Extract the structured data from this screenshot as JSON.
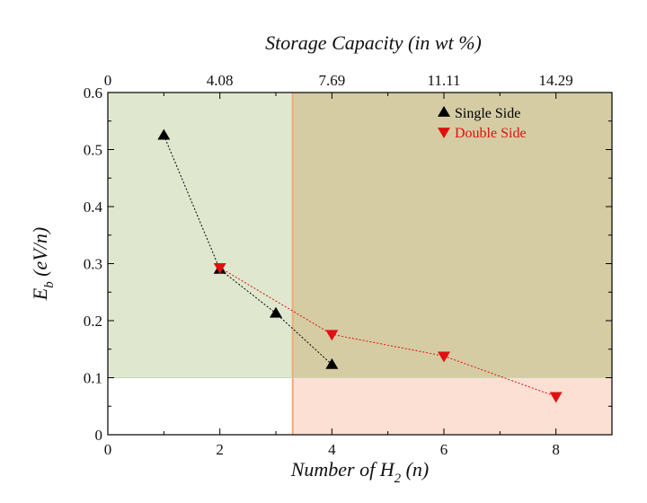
{
  "chart_data": {
    "type": "scatter",
    "x_axis": {
      "label_main": "Number of H",
      "label_sub": "2",
      "label_tail": " (n)",
      "range": [
        0,
        9
      ],
      "ticks": [
        0,
        2,
        4,
        6,
        8
      ],
      "tick_labels": [
        "0",
        "2",
        "4",
        "6",
        "8"
      ]
    },
    "top_axis": {
      "label": "Storage Capacity (in wt %)",
      "ticks": [
        0,
        2,
        4,
        6,
        8
      ],
      "tick_labels": [
        "0",
        "4.08",
        "7.69",
        "11.11",
        "14.29"
      ]
    },
    "y_axis": {
      "label_main": "E",
      "label_sub": "b",
      "label_tail": " (eV/n)",
      "range": [
        0,
        0.6
      ],
      "ticks": [
        0,
        0.1,
        0.2,
        0.3,
        0.4,
        0.5,
        0.6
      ],
      "tick_labels": [
        "0",
        "0.1",
        "0.2",
        "0.3",
        "0.4",
        "0.5",
        "0.6"
      ]
    },
    "regions": [
      {
        "name": "green-region",
        "x_range": [
          0,
          3.3
        ],
        "y_range": [
          0.1,
          0.6
        ],
        "color": "#dfe8cf"
      },
      {
        "name": "olive-region",
        "x_range": [
          3.3,
          9
        ],
        "y_range": [
          0.1,
          0.6
        ],
        "color": "#d5cca3"
      },
      {
        "name": "pink-region",
        "x_range": [
          3.3,
          9
        ],
        "y_range": [
          0,
          0.1
        ],
        "color": "#fbe0d3"
      },
      {
        "name": "divider-line",
        "x": 3.3,
        "color": "#f2a978"
      }
    ],
    "series": [
      {
        "name": "Single Side",
        "marker": "triangle-up",
        "color": "#000000",
        "x": [
          1,
          2,
          3,
          4
        ],
        "y": [
          0.525,
          0.29,
          0.213,
          0.123
        ]
      },
      {
        "name": "Double Side",
        "marker": "triangle-down",
        "color": "#e01010",
        "x": [
          2,
          4,
          6,
          8
        ],
        "y": [
          0.293,
          0.176,
          0.138,
          0.067
        ]
      }
    ],
    "legend_position": "top-right"
  }
}
